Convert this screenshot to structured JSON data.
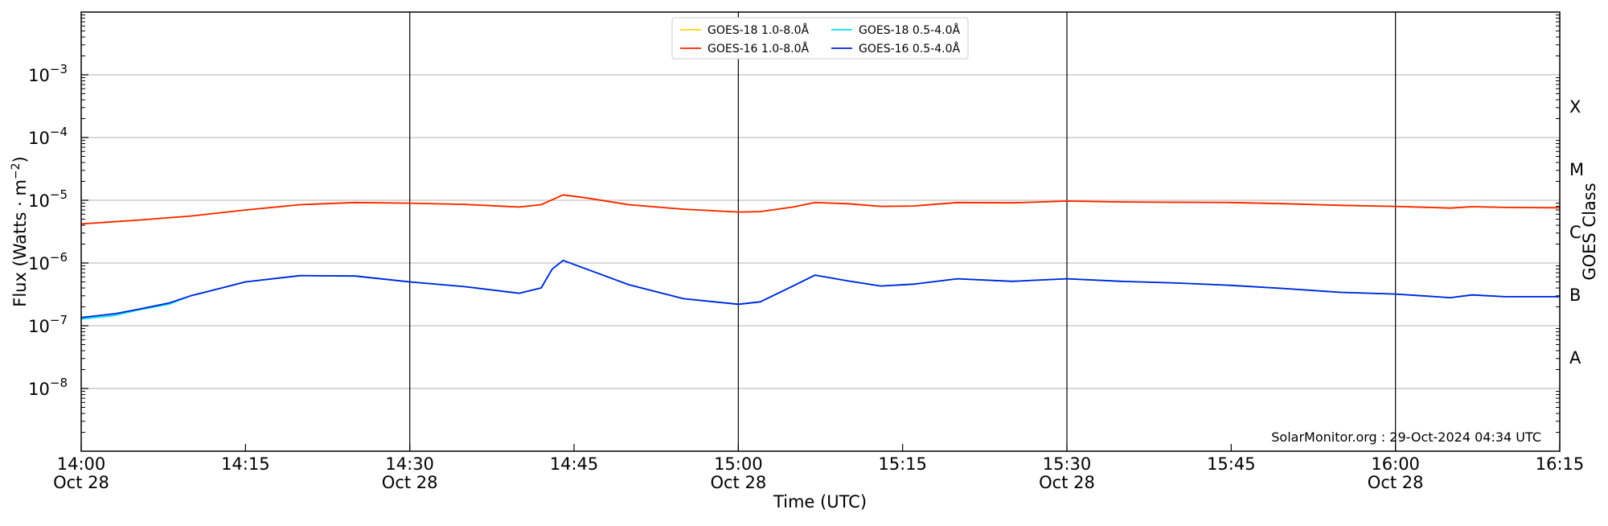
{
  "chart_data": {
    "type": "line",
    "title": "",
    "xlabel": "Time (UTC)",
    "ylabel": "Flux (Watts · m",
    "ylabel_sup": "−2",
    "ylabel_close": ")",
    "y2label": "GOES Class",
    "yscale": "log",
    "ylim": [
      1e-09,
      0.01
    ],
    "xlim": [
      "2024-10-28 14:00",
      "2024-10-28 16:15"
    ],
    "grid": "horizontal at each decade; vertical lines every 30 min",
    "legend_placement": "top-center",
    "x_ticks": [
      {
        "value": "14:00",
        "time": "14:00",
        "line2": "Oct 28"
      },
      {
        "value": "14:15",
        "time": "14:15",
        "line2": ""
      },
      {
        "value": "14:30",
        "time": "14:30",
        "line2": "Oct 28"
      },
      {
        "value": "14:45",
        "time": "14:45",
        "line2": ""
      },
      {
        "value": "15:00",
        "time": "15:00",
        "line2": "Oct 28"
      },
      {
        "value": "15:15",
        "time": "15:15",
        "line2": ""
      },
      {
        "value": "15:30",
        "time": "15:30",
        "line2": "Oct 28"
      },
      {
        "value": "15:45",
        "time": "15:45",
        "line2": ""
      },
      {
        "value": "16:00",
        "time": "16:00",
        "line2": "Oct 28"
      },
      {
        "value": "16:15",
        "time": "16:15",
        "line2": ""
      }
    ],
    "vlines": [
      "14:30",
      "15:00",
      "15:30",
      "16:00"
    ],
    "y_ticks": [
      {
        "value": 1e-08,
        "base": "10",
        "exp": "−8"
      },
      {
        "value": 1e-07,
        "base": "10",
        "exp": "−7"
      },
      {
        "value": 1e-06,
        "base": "10",
        "exp": "−6"
      },
      {
        "value": 1e-05,
        "base": "10",
        "exp": "−5"
      },
      {
        "value": 0.0001,
        "base": "10",
        "exp": "−4"
      },
      {
        "value": 0.001,
        "base": "10",
        "exp": "−3"
      }
    ],
    "goes_classes": [
      {
        "label": "A",
        "value": 3.16e-08
      },
      {
        "label": "B",
        "value": 3.16e-07
      },
      {
        "label": "C",
        "value": 3.16e-06
      },
      {
        "label": "M",
        "value": 3.16e-05
      },
      {
        "label": "X",
        "value": 0.000316
      }
    ],
    "legend": [
      {
        "label": "GOES-18 1.0-8.0Å",
        "color": "#FFD700",
        "series": 0
      },
      {
        "label": "GOES-18 0.5-4.0Å",
        "color": "#00E5EE",
        "series": 1
      },
      {
        "label": "GOES-16 1.0-8.0Å",
        "color": "#FF2200",
        "series": 2
      },
      {
        "label": "GOES-16 0.5-4.0Å",
        "color": "#0022DD",
        "series": 3
      }
    ],
    "series": [
      {
        "name": "GOES-18 1.0-8.0Å",
        "color": "#FFD700",
        "x": [
          "14:00",
          "14:05",
          "14:10",
          "14:15",
          "14:20",
          "14:25",
          "14:30",
          "14:35",
          "14:40",
          "14:42",
          "14:44",
          "14:46",
          "14:50",
          "14:55",
          "15:00",
          "15:02",
          "15:05",
          "15:07",
          "15:10",
          "15:13",
          "15:16",
          "15:20",
          "15:25",
          "15:30",
          "15:35",
          "15:40",
          "15:45",
          "15:50",
          "15:55",
          "16:00",
          "16:05",
          "16:07",
          "16:10",
          "16:15"
        ],
        "y": [
          4.2e-06,
          4.8e-06,
          5.6e-06,
          7e-06,
          8.5e-06,
          9.2e-06,
          9e-06,
          8.6e-06,
          7.8e-06,
          8.5e-06,
          1.22e-05,
          1.1e-05,
          8.5e-06,
          7.2e-06,
          6.5e-06,
          6.6e-06,
          7.8e-06,
          9.2e-06,
          8.8e-06,
          8e-06,
          8.1e-06,
          9.2e-06,
          9.1e-06,
          9.7e-06,
          9.4e-06,
          9.3e-06,
          9.2e-06,
          8.8e-06,
          8.3e-06,
          8e-06,
          7.5e-06,
          7.9e-06,
          7.7e-06,
          7.6e-06
        ]
      },
      {
        "name": "GOES-18 0.5-4.0Å",
        "color": "#00E5EE",
        "x": [
          "14:00",
          "14:03",
          "14:05",
          "14:08",
          "14:10",
          "14:15",
          "14:20",
          "14:25",
          "14:30",
          "14:35",
          "14:40",
          "14:42",
          "14:43",
          "14:44",
          "14:50",
          "14:55",
          "15:00",
          "15:02",
          "15:05",
          "15:07",
          "15:10",
          "15:13",
          "15:16",
          "15:20",
          "15:25",
          "15:30",
          "15:35",
          "15:40",
          "15:45",
          "15:50",
          "15:55",
          "16:00",
          "16:05",
          "16:07",
          "16:10",
          "16:15"
        ],
        "y": [
          1.28e-07,
          1.45e-07,
          1.75e-07,
          2.2e-07,
          3e-07,
          5e-07,
          6.3e-07,
          6.2e-07,
          5e-07,
          4.2e-07,
          3.3e-07,
          4e-07,
          8e-07,
          1.1e-06,
          4.5e-07,
          2.7e-07,
          2.2e-07,
          2.4e-07,
          4.3e-07,
          6.4e-07,
          5.2e-07,
          4.3e-07,
          4.6e-07,
          5.6e-07,
          5.1e-07,
          5.6e-07,
          5.1e-07,
          4.8e-07,
          4.4e-07,
          3.9e-07,
          3.4e-07,
          3.2e-07,
          2.8e-07,
          3.1e-07,
          2.9e-07,
          2.9e-07
        ]
      },
      {
        "name": "GOES-16 1.0-8.0Å",
        "color": "#FF2200",
        "x": [
          "14:00",
          "14:05",
          "14:10",
          "14:15",
          "14:20",
          "14:25",
          "14:30",
          "14:35",
          "14:40",
          "14:42",
          "14:44",
          "14:46",
          "14:50",
          "14:55",
          "15:00",
          "15:02",
          "15:05",
          "15:07",
          "15:10",
          "15:13",
          "15:16",
          "15:20",
          "15:25",
          "15:30",
          "15:35",
          "15:40",
          "15:45",
          "15:50",
          "15:55",
          "16:00",
          "16:05",
          "16:07",
          "16:10",
          "16:15"
        ],
        "y": [
          4.2e-06,
          4.8e-06,
          5.6e-06,
          7e-06,
          8.5e-06,
          9.2e-06,
          9e-06,
          8.6e-06,
          7.8e-06,
          8.5e-06,
          1.22e-05,
          1.1e-05,
          8.5e-06,
          7.2e-06,
          6.5e-06,
          6.6e-06,
          7.8e-06,
          9.2e-06,
          8.8e-06,
          8e-06,
          8.1e-06,
          9.2e-06,
          9.1e-06,
          9.7e-06,
          9.4e-06,
          9.3e-06,
          9.2e-06,
          8.8e-06,
          8.3e-06,
          8e-06,
          7.5e-06,
          7.9e-06,
          7.7e-06,
          7.6e-06
        ]
      },
      {
        "name": "GOES-16 0.5-4.0Å",
        "color": "#0022DD",
        "x": [
          "14:00",
          "14:03",
          "14:05",
          "14:08",
          "14:10",
          "14:15",
          "14:20",
          "14:25",
          "14:30",
          "14:35",
          "14:40",
          "14:42",
          "14:43",
          "14:44",
          "14:50",
          "14:55",
          "15:00",
          "15:02",
          "15:05",
          "15:07",
          "15:10",
          "15:13",
          "15:16",
          "15:20",
          "15:25",
          "15:30",
          "15:35",
          "15:40",
          "15:45",
          "15:50",
          "15:55",
          "16:00",
          "16:05",
          "16:07",
          "16:10",
          "16:15"
        ],
        "y": [
          1.35e-07,
          1.55e-07,
          1.8e-07,
          2.3e-07,
          3e-07,
          5e-07,
          6.3e-07,
          6.2e-07,
          5e-07,
          4.2e-07,
          3.3e-07,
          4e-07,
          8e-07,
          1.1e-06,
          4.5e-07,
          2.7e-07,
          2.2e-07,
          2.4e-07,
          4.3e-07,
          6.4e-07,
          5.2e-07,
          4.3e-07,
          4.6e-07,
          5.6e-07,
          5.1e-07,
          5.6e-07,
          5.1e-07,
          4.8e-07,
          4.4e-07,
          3.9e-07,
          3.4e-07,
          3.2e-07,
          2.8e-07,
          3.1e-07,
          2.9e-07,
          2.9e-07
        ]
      }
    ],
    "annotation": "SolarMonitor.org : 29-Oct-2024 04:34 UTC"
  }
}
